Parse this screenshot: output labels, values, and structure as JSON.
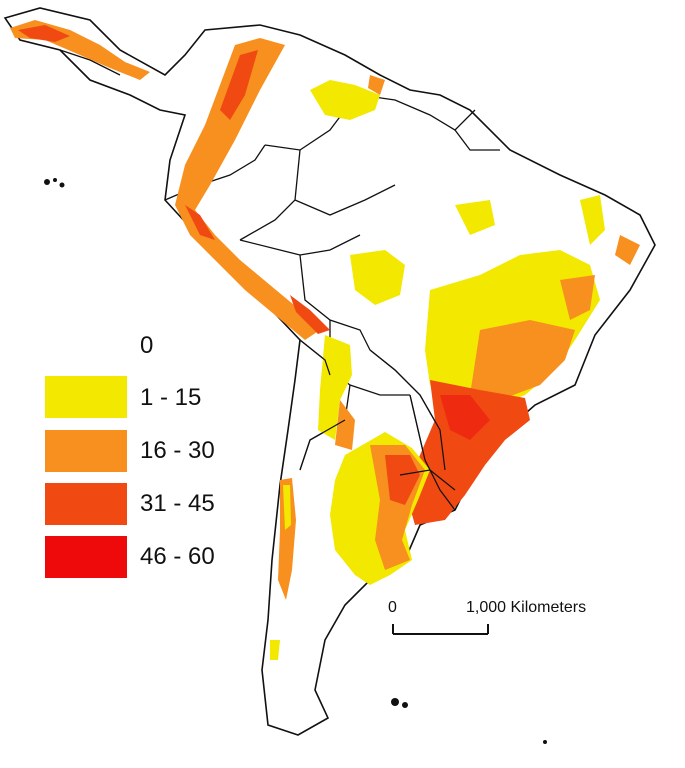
{
  "legend": {
    "items": [
      {
        "label": "0",
        "color": "#ffffff"
      },
      {
        "label": "1 - 15",
        "color": "#f2e800"
      },
      {
        "label": "16 - 30",
        "color": "#f7901e"
      },
      {
        "label": "31 - 45",
        "color": "#f04a12"
      },
      {
        "label": "46 - 60",
        "color": "#ee0a0a"
      }
    ]
  },
  "scale_bar": {
    "start_label": "0",
    "end_label": "1,000 Kilometers"
  },
  "colors": {
    "outline": "#111111",
    "water": "#ffffff"
  }
}
